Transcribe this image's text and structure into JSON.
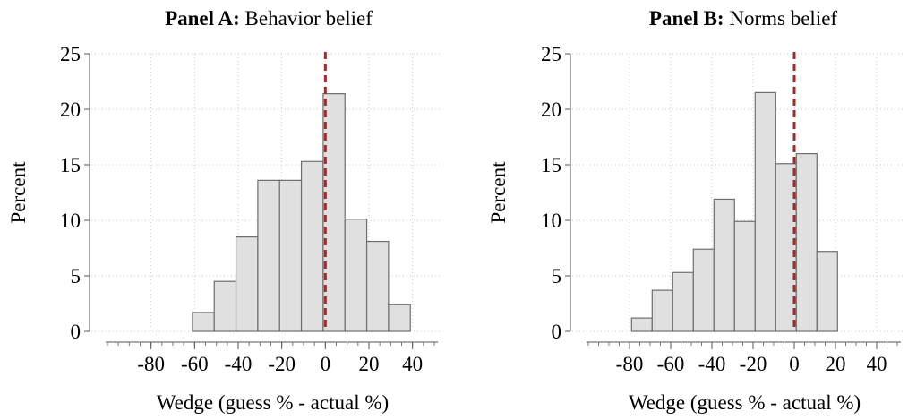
{
  "chart_data": [
    {
      "type": "bar",
      "title_bold": "Panel A:",
      "title_rest": " Behavior belief",
      "xlabel": "Wedge (guess % - actual %)",
      "ylabel": "Percent",
      "bin_width": 10,
      "bin_starts": [
        -61,
        -51,
        -41,
        -31,
        -21,
        -11,
        -1,
        9,
        19,
        29
      ],
      "values": [
        1.7,
        4.5,
        8.5,
        13.6,
        13.6,
        15.3,
        21.4,
        10.1,
        8.1,
        2.4
      ],
      "xlim": [
        -100,
        50
      ],
      "ylim": [
        0,
        25
      ],
      "xticks": [
        "-80",
        "-60",
        "-40",
        "-20",
        "0",
        "20",
        "40"
      ],
      "xtick_values": [
        -80,
        -60,
        -40,
        -20,
        0,
        20,
        40
      ],
      "yticks": [
        "0",
        "5",
        "10",
        "15",
        "20",
        "25"
      ],
      "ytick_values": [
        0,
        5,
        10,
        15,
        20,
        25
      ],
      "reference_line_x": 0,
      "grid": true,
      "colors": {
        "bar_fill": "#e0e0e0",
        "bar_stroke": "#6e6e6e",
        "reference_line": "#9b2d2d",
        "grid": "#c8c8c8"
      }
    },
    {
      "type": "bar",
      "title_bold": "Panel B:",
      "title_rest": " Norms belief",
      "xlabel": "Wedge (guess % - actual %)",
      "ylabel": "Percent",
      "bin_width": 10,
      "bin_starts": [
        -79,
        -69,
        -59,
        -49,
        -39,
        -29,
        -19,
        -9,
        1,
        11
      ],
      "values": [
        1.2,
        3.7,
        5.3,
        7.4,
        11.9,
        9.9,
        21.5,
        15.1,
        16.0,
        7.2
      ],
      "xlim": [
        -100,
        50
      ],
      "ylim": [
        0,
        25
      ],
      "xticks": [
        "-80",
        "-60",
        "-40",
        "-20",
        "0",
        "20",
        "40"
      ],
      "xtick_values": [
        -80,
        -60,
        -40,
        -20,
        0,
        20,
        40
      ],
      "yticks": [
        "0",
        "5",
        "10",
        "15",
        "20",
        "25"
      ],
      "ytick_values": [
        0,
        5,
        10,
        15,
        20,
        25
      ],
      "reference_line_x": 0,
      "grid": true,
      "colors": {
        "bar_fill": "#e0e0e0",
        "bar_stroke": "#6e6e6e",
        "reference_line": "#9b2d2d",
        "grid": "#c8c8c8"
      }
    }
  ]
}
